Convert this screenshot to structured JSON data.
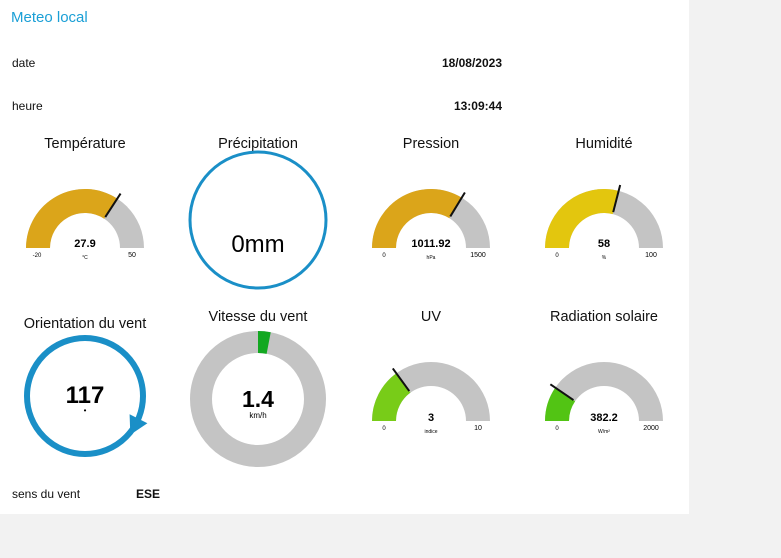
{
  "app": {
    "title": "Meteo local"
  },
  "rows": {
    "date_label": "date",
    "date_value": "18/08/2023",
    "time_label": "heure",
    "time_value": "13:09:44",
    "wind_dir_label": "sens du vent",
    "wind_dir_value": "ESE"
  },
  "gauges": {
    "temperature": {
      "title": "Température",
      "value": 27.9,
      "display": "27.9",
      "unit": "°C",
      "min": -20,
      "max": 50,
      "min_label": "-20",
      "max_label": "50",
      "color": "#dba51a"
    },
    "precipitation": {
      "title": "Précipitation",
      "display": "0mm",
      "color": "#1a8fc7"
    },
    "pressure": {
      "title": "Pression",
      "value": 1011.92,
      "display": "1011.92",
      "unit": "hPa",
      "min": 0,
      "max": 1500,
      "min_label": "0",
      "max_label": "1500",
      "color": "#dba51a"
    },
    "humidity": {
      "title": "Humidité",
      "value": 58,
      "display": "58",
      "unit": "%",
      "min": 0,
      "max": 100,
      "min_label": "0",
      "max_label": "100",
      "color": "#e3c60e"
    },
    "wind_orientation": {
      "title": "Orientation du vent",
      "value": 117,
      "display": "117",
      "sub": "•",
      "color": "#1a8fc7"
    },
    "wind_speed": {
      "title": "Vitesse du vent",
      "value": 1.4,
      "display": "1.4",
      "unit": "km/h",
      "max": 100,
      "color": "#13a821"
    },
    "uv": {
      "title": "UV",
      "value": 3,
      "display": "3",
      "unit": "indice",
      "min": 0,
      "max": 10,
      "min_label": "0",
      "max_label": "10",
      "color": "#78cc18"
    },
    "solar": {
      "title": "Radiation solaire",
      "value": 382.2,
      "display": "382.2",
      "unit": "W/m²",
      "min": 0,
      "max": 2000,
      "min_label": "0",
      "max_label": "2000",
      "color": "#52c414"
    }
  },
  "colors": {
    "track": "#c4c4c4",
    "needle": "#111111",
    "accent": "#1a9fd6"
  }
}
